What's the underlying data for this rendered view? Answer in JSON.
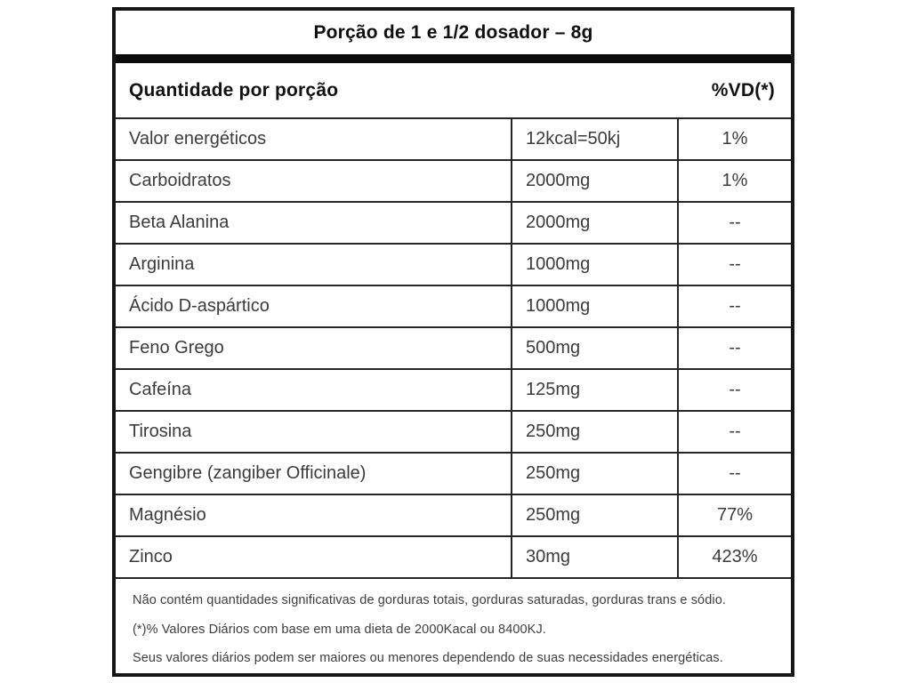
{
  "label": {
    "title": "Porção de 1 e 1/2 dosador – 8g",
    "header": {
      "quantity_label": "Quantidade por porção",
      "vd_label": "%VD(*)"
    },
    "rows": [
      {
        "name": "Valor energéticos",
        "amount": "12kcal=50kj",
        "vd": "1%"
      },
      {
        "name": "Carboidratos",
        "amount": "2000mg",
        "vd": "1%"
      },
      {
        "name": "Beta Alanina",
        "amount": "2000mg",
        "vd": "--"
      },
      {
        "name": "Arginina",
        "amount": "1000mg",
        "vd": "--"
      },
      {
        "name": "Ácido D-aspártico",
        "amount": "1000mg",
        "vd": "--"
      },
      {
        "name": "Feno Grego",
        "amount": "500mg",
        "vd": "--"
      },
      {
        "name": "Cafeína",
        "amount": "125mg",
        "vd": "--"
      },
      {
        "name": "Tirosina",
        "amount": "250mg",
        "vd": "--"
      },
      {
        "name": "Gengibre (zangiber Officinale)",
        "amount": "250mg",
        "vd": "--"
      },
      {
        "name": "Magnésio",
        "amount": "250mg",
        "vd": "77%"
      },
      {
        "name": "Zinco",
        "amount": "30mg",
        "vd": "423%"
      }
    ],
    "footnotes": [
      "Não contém quantidades significativas de gorduras totais, gorduras saturadas, gorduras trans e sódio.",
      "(*)% Valores Diários com base em uma dieta de 2000Kacal ou 8400KJ.",
      "Seus valores diários podem ser maiores ou menores dependendo de suas necessidades energéticas."
    ],
    "colors": {
      "border": "#161616",
      "divider": "#262626",
      "text": "#3b3b3b",
      "heading_text": "#0f0f0f",
      "background": "#ffffff"
    }
  }
}
